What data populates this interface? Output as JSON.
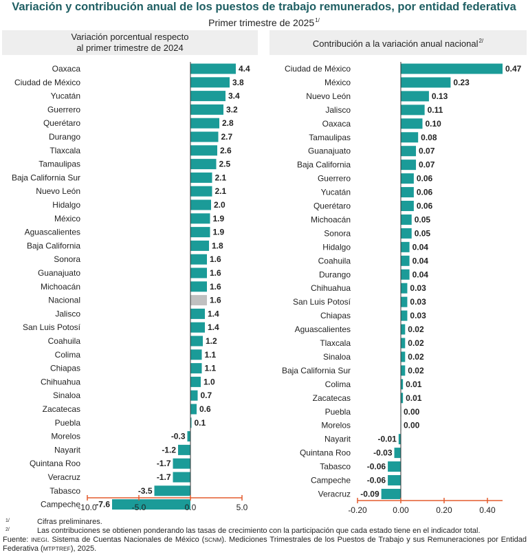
{
  "title": "Variación y contribución anual de los puestos de trabajo remunerados, por entidad federativa",
  "subtitle": "Primer trimestre de 2025",
  "subtitle_note": "1/",
  "colors": {
    "bar": "#1b9b98",
    "highlight": "#c0c0c0",
    "axis": "#e35b2d",
    "title": "#1f5f63"
  },
  "chart_data": [
    {
      "type": "bar",
      "orientation": "horizontal",
      "title": "Variación porcentual respecto al primer trimestre de 2024",
      "title_lines": [
        "Variación porcentual respecto",
        "al primer trimestre de 2024"
      ],
      "highlight": "Nacional",
      "xlim": [
        -10.0,
        5.0
      ],
      "xticks": [
        -10.0,
        -5.0,
        0.0,
        5.0
      ],
      "xtick_labels": [
        "-10.0",
        "-5.0",
        "0.0",
        "5.0"
      ],
      "categories": [
        "Oaxaca",
        "Ciudad de México",
        "Yucatán",
        "Guerrero",
        "Querétaro",
        "Durango",
        "Tlaxcala",
        "Tamaulipas",
        "Baja California Sur",
        "Nuevo León",
        "Hidalgo",
        "México",
        "Aguascalientes",
        "Baja California",
        "Sonora",
        "Guanajuato",
        "Michoacán",
        "Nacional",
        "Jalisco",
        "San Luis Potosí",
        "Coahuila",
        "Colima",
        "Chiapas",
        "Chihuahua",
        "Sinaloa",
        "Zacatecas",
        "Puebla",
        "Morelos",
        "Nayarit",
        "Quintana Roo",
        "Veracruz",
        "Tabasco",
        "Campeche"
      ],
      "values": [
        4.4,
        3.8,
        3.4,
        3.2,
        2.8,
        2.7,
        2.6,
        2.5,
        2.1,
        2.1,
        2.0,
        1.9,
        1.9,
        1.8,
        1.6,
        1.6,
        1.6,
        1.6,
        1.4,
        1.4,
        1.2,
        1.1,
        1.1,
        1.0,
        0.7,
        0.6,
        0.1,
        -0.3,
        -1.2,
        -1.7,
        -1.7,
        -3.5,
        -7.6
      ],
      "value_labels": [
        "4.4",
        "3.8",
        "3.4",
        "3.2",
        "2.8",
        "2.7",
        "2.6",
        "2.5",
        "2.1",
        "2.1",
        "2.0",
        "1.9",
        "1.9",
        "1.8",
        "1.6",
        "1.6",
        "1.6",
        "1.6",
        "1.4",
        "1.4",
        "1.2",
        "1.1",
        "1.1",
        "1.0",
        "0.7",
        "0.6",
        "0.1",
        "-0.3",
        "-1.2",
        "-1.7",
        "-1.7",
        "-3.5",
        "-7.6"
      ]
    },
    {
      "type": "bar",
      "orientation": "horizontal",
      "title": "Contribución a la variación anual nacional",
      "title_note": "2/",
      "xlim": [
        -0.2,
        0.47
      ],
      "xticks": [
        -0.2,
        0.0,
        0.2,
        0.4
      ],
      "xtick_labels": [
        "-0.20",
        "0.00",
        "0.20",
        "0.40"
      ],
      "categories": [
        "Ciudad de México",
        "México",
        "Nuevo León",
        "Jalisco",
        "Oaxaca",
        "Tamaulipas",
        "Guanajuato",
        "Baja California",
        "Guerrero",
        "Yucatán",
        "Querétaro",
        "Michoacán",
        "Sonora",
        "Hidalgo",
        "Coahuila",
        "Durango",
        "Chihuahua",
        "San Luis Potosí",
        "Chiapas",
        "Aguascalientes",
        "Tlaxcala",
        "Sinaloa",
        "Baja California Sur",
        "Colima",
        "Zacatecas",
        "Puebla",
        "Morelos",
        "Nayarit",
        "Quintana Roo",
        "Tabasco",
        "Campeche",
        "Veracruz"
      ],
      "values": [
        0.47,
        0.23,
        0.13,
        0.11,
        0.1,
        0.08,
        0.07,
        0.07,
        0.06,
        0.06,
        0.06,
        0.05,
        0.05,
        0.04,
        0.04,
        0.04,
        0.03,
        0.03,
        0.03,
        0.02,
        0.02,
        0.02,
        0.02,
        0.01,
        0.01,
        0.0,
        0.0,
        -0.01,
        -0.03,
        -0.06,
        -0.06,
        -0.09
      ],
      "value_labels": [
        "0.47",
        "0.23",
        "0.13",
        "0.11",
        "0.10",
        "0.08",
        "0.07",
        "0.07",
        "0.06",
        "0.06",
        "0.06",
        "0.05",
        "0.05",
        "0.04",
        "0.04",
        "0.04",
        "0.03",
        "0.03",
        "0.03",
        "0.02",
        "0.02",
        "0.02",
        "0.02",
        "0.01",
        "0.01",
        "0.00",
        "0.00",
        "-0.01",
        "-0.03",
        "-0.06",
        "-0.06",
        "-0.09"
      ]
    }
  ],
  "notes": [
    {
      "mark": "1/",
      "text": "Cifras preliminares."
    },
    {
      "mark": "2/",
      "text": "Las contribuciones se obtienen ponderando las tasas de crecimiento con la participación que cada estado tiene en el indicador total."
    }
  ],
  "source": {
    "label": "Fuente:",
    "org": "INEGI",
    "text_a": ". Sistema de Cuentas Nacionales de México (",
    "abbr1": "SCNM",
    "text_b": "). Mediciones Trimestrales de los Puestos de Trabajo y sus Remuneraciones por Entidad Federativa (",
    "abbr2": "MTPTREF",
    "text_c": "), 2025."
  }
}
